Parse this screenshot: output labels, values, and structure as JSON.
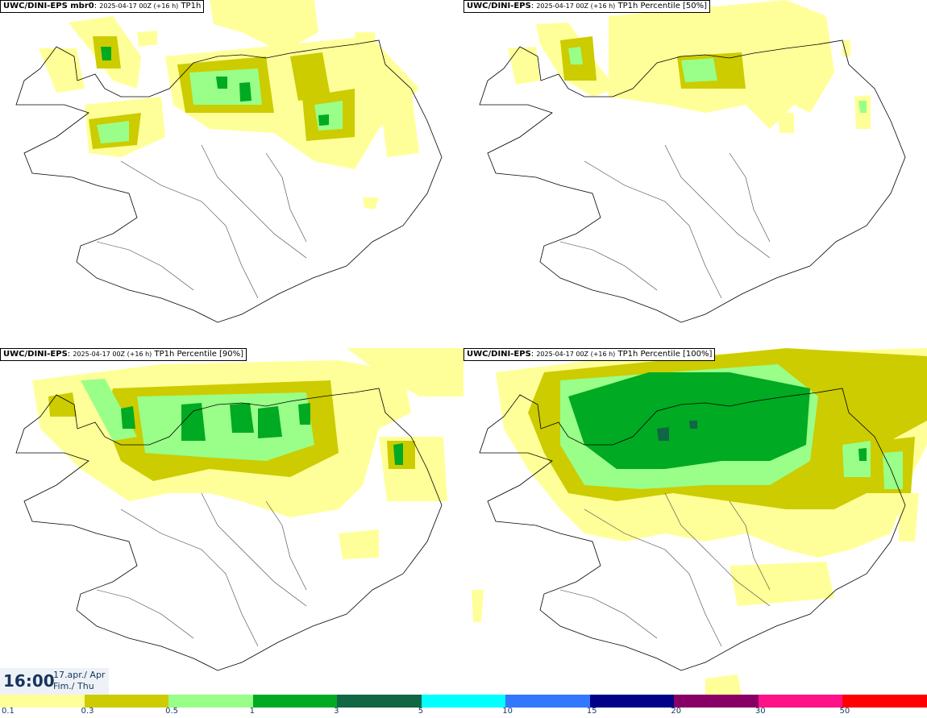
{
  "panels": [
    {
      "source": "UWC/DINI-EPS mbr0",
      "run": "2025-04-17 00Z (+16 h)",
      "field": "TP1h"
    },
    {
      "source": "UWC/DINI-EPS",
      "run": "2025-04-17 00Z (+16 h)",
      "field": "TP1h Percentile [50%]"
    },
    {
      "source": "UWC/DINI-EPS",
      "run": "2025-04-17 00Z (+16 h)",
      "field": "TP1h Percentile [90%]"
    },
    {
      "source": "UWC/DINI-EPS",
      "run": "2025-04-17 00Z (+16 h)",
      "field": "TP1h Percentile [100%]"
    }
  ],
  "valid_time": {
    "time": "16:00",
    "date_line1": "17.apr./ Apr",
    "date_line2": "Fim./ Thu"
  },
  "legend": {
    "tick_labels": [
      "0.1",
      "0.3",
      "0.5",
      "1",
      "3",
      "5",
      "10",
      "15",
      "20",
      "30",
      "50"
    ],
    "colors": [
      "#ffff99",
      "#cccc00",
      "#99ff88",
      "#00aa22",
      "#116644",
      "#00ffff",
      "#3377ff",
      "#000088",
      "#880066",
      "#ff1188",
      "#ff0000"
    ]
  }
}
